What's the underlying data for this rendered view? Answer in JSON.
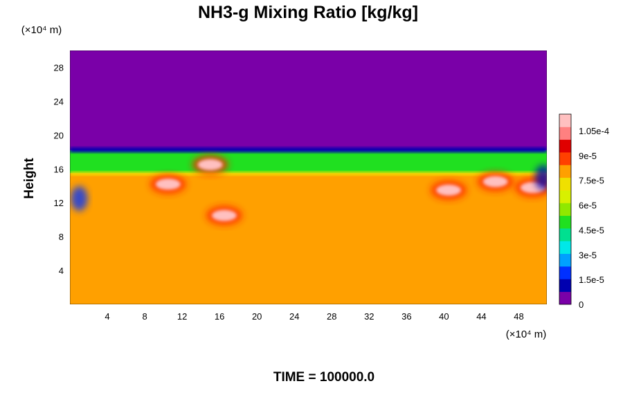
{
  "chart_data": {
    "type": "heatmap",
    "title": "NH3-g Mixing Ratio [kg/kg]",
    "xlabel": "",
    "ylabel": "Height",
    "x_unit": "(×10⁴ m)",
    "y_unit": "(×10⁴ m)",
    "x_ticks": [
      4,
      8,
      12,
      16,
      20,
      24,
      28,
      32,
      36,
      40,
      44,
      48
    ],
    "y_ticks": [
      4,
      8,
      12,
      16,
      20,
      24,
      28
    ],
    "xlim": [
      0,
      51
    ],
    "ylim": [
      0,
      30
    ],
    "colorbar": {
      "labels": [
        {
          "value": 0,
          "text": "0"
        },
        {
          "value": 1.5e-05,
          "text": "1.5e-5"
        },
        {
          "value": 3e-05,
          "text": "3e-5"
        },
        {
          "value": 4.5e-05,
          "text": "4.5e-5"
        },
        {
          "value": 6e-05,
          "text": "6e-5"
        },
        {
          "value": 7.5e-05,
          "text": "7.5e-5"
        },
        {
          "value": 9e-05,
          "text": "9e-5"
        },
        {
          "value": 0.000105,
          "text": "1.05e-4"
        }
      ],
      "range": [
        0,
        0.000115
      ],
      "colors": [
        "#7a00a8",
        "#0000b0",
        "#0030ff",
        "#00a0ff",
        "#00e8e8",
        "#00e090",
        "#20e020",
        "#90e800",
        "#d8f000",
        "#f0e000",
        "#ffa000",
        "#ff4000",
        "#e00000",
        "#ff8080",
        "#ffc0c0"
      ]
    },
    "regions": [
      {
        "name": "upper-layer",
        "y_range": [
          18.2,
          30
        ],
        "level": 0
      },
      {
        "name": "transition-layer",
        "y_range": [
          15.5,
          18.2
        ],
        "level": 5e-05
      },
      {
        "name": "lower-layer",
        "y_range": [
          0,
          15.5
        ],
        "level": 8e-05
      }
    ],
    "features": [
      {
        "name": "max-blob-1",
        "x": 15,
        "y": 16.5,
        "level": 0.00011
      },
      {
        "name": "max-blob-2",
        "x": 16.5,
        "y": 10.5,
        "level": 0.00011
      },
      {
        "name": "max-blob-3",
        "x": 10.5,
        "y": 14.2,
        "level": 0.00011
      },
      {
        "name": "max-blob-4",
        "x": 40.5,
        "y": 13.5,
        "level": 0.00011
      },
      {
        "name": "max-blob-5",
        "x": 45.5,
        "y": 14.5,
        "level": 0.00011
      },
      {
        "name": "max-blob-6",
        "x": 49.5,
        "y": 13.8,
        "level": 0.00011
      },
      {
        "name": "min-edge-left",
        "x": 1.0,
        "y": 12.5,
        "level": 2e-05
      },
      {
        "name": "min-edge-right",
        "x": 50.6,
        "y": 15,
        "level": 1e-05
      }
    ],
    "grid": false,
    "legend": "colorbar-right"
  },
  "footer": {
    "time_label": "TIME = 100000.0"
  }
}
